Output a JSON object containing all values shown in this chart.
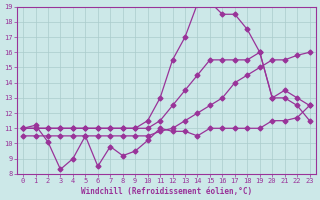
{
  "xlabel": "Windchill (Refroidissement éolien,°C)",
  "bg_color": "#cce8e8",
  "grid_color": "#aacccc",
  "line_color": "#993399",
  "xlim": [
    -0.5,
    23.5
  ],
  "ylim": [
    8,
    19
  ],
  "xticks": [
    0,
    1,
    2,
    3,
    4,
    5,
    6,
    7,
    8,
    9,
    10,
    11,
    12,
    13,
    14,
    15,
    16,
    17,
    18,
    19,
    20,
    21,
    22,
    23
  ],
  "yticks": [
    8,
    9,
    10,
    11,
    12,
    13,
    14,
    15,
    16,
    17,
    18,
    19
  ],
  "line1_x": [
    0,
    1,
    2,
    3,
    4,
    5,
    6,
    7,
    8,
    9,
    10,
    11,
    12,
    13,
    14,
    15,
    16,
    17,
    18,
    19,
    20,
    21,
    22,
    23
  ],
  "line1_y": [
    11.0,
    11.2,
    10.1,
    8.3,
    9.0,
    10.5,
    8.5,
    9.8,
    9.2,
    9.5,
    10.2,
    11.0,
    10.8,
    10.8,
    10.5,
    11.0,
    11.0,
    11.0,
    11.0,
    11.0,
    11.5,
    11.5,
    11.7,
    12.5
  ],
  "line2_x": [
    0,
    1,
    2,
    3,
    4,
    5,
    6,
    7,
    8,
    9,
    10,
    11,
    12,
    13,
    14,
    15,
    16,
    17,
    18,
    19,
    20,
    21,
    22,
    23
  ],
  "line2_y": [
    11.0,
    11.0,
    11.0,
    11.0,
    11.0,
    11.0,
    11.0,
    11.0,
    11.0,
    11.0,
    11.0,
    11.5,
    12.5,
    13.5,
    14.5,
    15.5,
    15.5,
    15.5,
    15.5,
    16.0,
    13.0,
    13.5,
    13.0,
    12.5
  ],
  "line3_x": [
    0,
    1,
    2,
    3,
    4,
    5,
    6,
    7,
    8,
    9,
    10,
    11,
    12,
    13,
    14,
    15,
    16,
    17,
    18,
    19,
    20,
    21,
    22,
    23
  ],
  "line3_y": [
    11.0,
    11.0,
    11.0,
    11.0,
    11.0,
    11.0,
    11.0,
    11.0,
    11.0,
    11.0,
    11.5,
    13.0,
    15.5,
    17.0,
    19.2,
    19.3,
    18.5,
    18.5,
    17.5,
    16.0,
    13.0,
    13.0,
    12.5,
    11.5
  ],
  "line4_x": [
    0,
    1,
    2,
    3,
    4,
    5,
    6,
    7,
    8,
    9,
    10,
    11,
    12,
    13,
    14,
    15,
    16,
    17,
    18,
    19,
    20,
    21,
    22,
    23
  ],
  "line4_y": [
    10.5,
    10.5,
    10.5,
    10.5,
    10.5,
    10.5,
    10.5,
    10.5,
    10.5,
    10.5,
    10.5,
    10.8,
    11.0,
    11.5,
    12.0,
    12.5,
    13.0,
    14.0,
    14.5,
    15.0,
    15.5,
    15.5,
    15.8,
    16.0
  ]
}
